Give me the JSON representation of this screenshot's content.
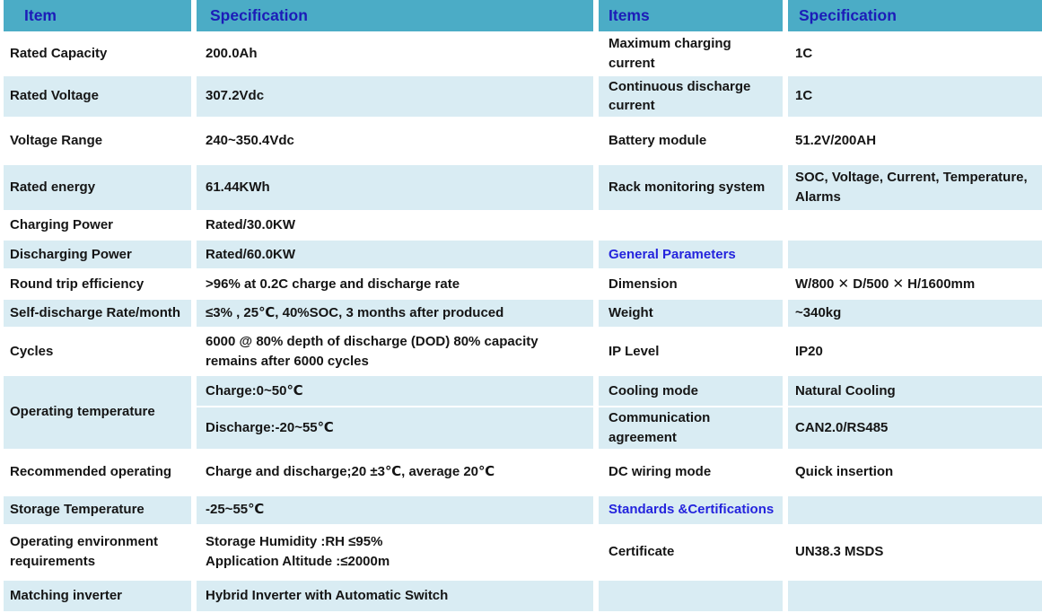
{
  "colors": {
    "header_bg": "#4BACC6",
    "row_alt_bg": "#D9ECF3",
    "row_bg": "#FFFFFF",
    "header_text": "#1C1CB8",
    "section_text": "#2424DD",
    "body_text": "#151515"
  },
  "header": {
    "col1": "Item",
    "col2": "Specification",
    "col3": "Items",
    "col4": "Specification"
  },
  "rows": [
    {
      "cells": [
        {
          "text": "Rated Capacity"
        },
        {
          "text": "200.0Ah"
        },
        {
          "text": "Maximum charging current"
        },
        {
          "text": "1C"
        }
      ]
    },
    {
      "cells": [
        {
          "text": "Rated Voltage"
        },
        {
          "text": "307.2Vdc"
        },
        {
          "text": "Continuous discharge current"
        },
        {
          "text": "1C"
        }
      ]
    },
    {
      "cells": [
        {
          "text": "Voltage Range"
        },
        {
          "text": "240~350.4Vdc"
        },
        {
          "text": "Battery module"
        },
        {
          "text": "51.2V/200AH"
        }
      ]
    },
    {
      "cells": [
        {
          "text": "Rated  energy"
        },
        {
          "text": "61.44KWh"
        },
        {
          "text": "Rack monitoring system"
        },
        {
          "text": "SOC, Voltage, Current, Temperature, Alarms"
        }
      ]
    },
    {
      "cells": [
        {
          "text": "Charging Power"
        },
        {
          "text": "Rated/30.0KW"
        },
        {
          "text": ""
        },
        {
          "text": ""
        }
      ]
    },
    {
      "cells": [
        {
          "text": "Discharging Power"
        },
        {
          "text": "Rated/60.0KW"
        },
        {
          "text": "General Parameters",
          "section": true
        },
        {
          "text": ""
        }
      ]
    },
    {
      "cells": [
        {
          "text": "Round trip efficiency"
        },
        {
          "text": ">96% at 0.2C charge and discharge rate"
        },
        {
          "text": "Dimension"
        },
        {
          "text": "W/800 ✕ D/500 ✕ H/1600mm"
        }
      ]
    },
    {
      "cells": [
        {
          "text": "Self-discharge Rate/month"
        },
        {
          "text": "≤3% , 25℃, 40%SOC, 3 months after produced"
        },
        {
          "text": "Weight"
        },
        {
          "text": "~340kg"
        }
      ]
    },
    {
      "cells": [
        {
          "text": "Cycles"
        },
        {
          "text": "6000 @ 80% depth of discharge (DOD) 80% capacity remains after 6000 cycles"
        },
        {
          "text": "IP Level"
        },
        {
          "text": "IP20"
        }
      ]
    },
    {
      "cells": [
        {
          "text": "Operating temperature",
          "rowspan": 2
        },
        {
          "text": "Charge:0~50℃"
        },
        {
          "text": "Cooling mode"
        },
        {
          "text": "Natural Cooling"
        }
      ]
    },
    {
      "cells": [
        {
          "text": "Discharge:-20~55℃"
        },
        {
          "text": "Communication agreement"
        },
        {
          "text": "CAN2.0/RS485"
        }
      ]
    },
    {
      "cells": [
        {
          "text": "Recommended operating"
        },
        {
          "text": "Charge and discharge;20 ±3℃, average 20℃"
        },
        {
          "text": "DC wiring mode"
        },
        {
          "text": "Quick insertion"
        }
      ]
    },
    {
      "cells": [
        {
          "text": "Storage Temperature"
        },
        {
          "text": "-25~55℃"
        },
        {
          "text": "Standards &Certifications",
          "section": true
        },
        {
          "text": ""
        }
      ]
    },
    {
      "cells": [
        {
          "text": "Operating environment requirements"
        },
        {
          "text": "Storage Humidity :RH ≤95%\nApplication Altitude :≤2000m"
        },
        {
          "text": "Certificate"
        },
        {
          "text": "UN38.3 MSDS"
        }
      ]
    },
    {
      "cells": [
        {
          "text": "Matching inverter"
        },
        {
          "text": "Hybrid Inverter with Automatic Switch"
        },
        {
          "text": ""
        },
        {
          "text": ""
        }
      ]
    }
  ]
}
